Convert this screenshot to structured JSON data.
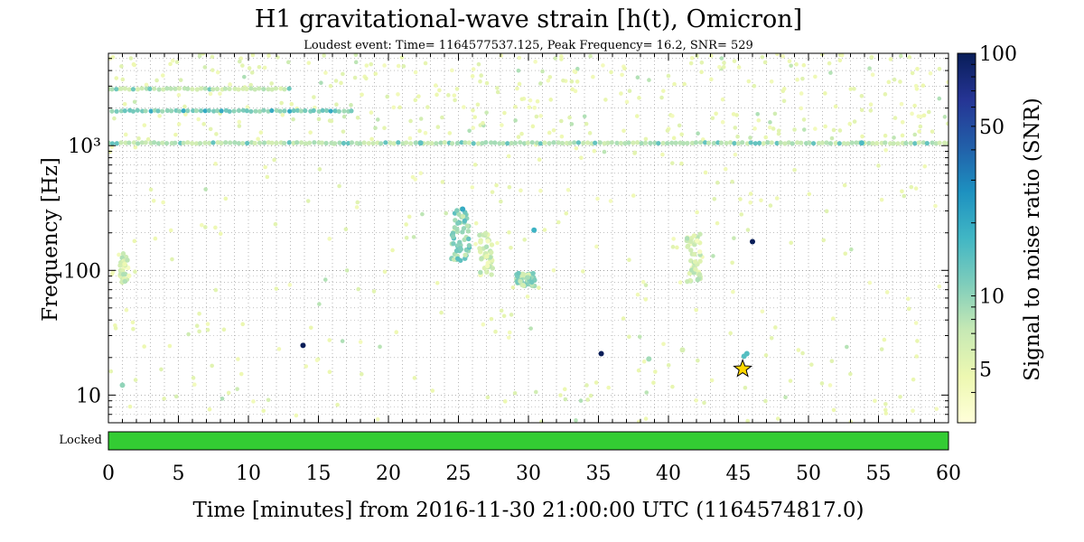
{
  "chart_data": {
    "type": "scatter",
    "title": "H1 gravitational-wave strain [h(t), Omicron]",
    "subtitle": "Loudest event: Time= 1164577537.125, Peak Frequency= 16.2, SNR= 529",
    "xlabel": "Time [minutes] from 2016-11-30 21:00:00 UTC (1164574817.0)",
    "ylabel": "Frequency [Hz]",
    "xlim": [
      0,
      60
    ],
    "ylim": [
      6,
      5500
    ],
    "yscale": "log",
    "grid": true,
    "x_ticks": [
      "0",
      "5",
      "10",
      "15",
      "20",
      "25",
      "30",
      "35",
      "40",
      "45",
      "50",
      "55",
      "60"
    ],
    "y_ticks": [
      {
        "value": 10,
        "label": "10"
      },
      {
        "value": 100,
        "label": "100"
      },
      {
        "value": 1000,
        "label": "10³"
      }
    ],
    "colorbar": {
      "label": "Signal to noise ratio (SNR)",
      "scale": "log",
      "range": [
        3,
        100
      ],
      "ticks": [
        {
          "value": 5,
          "label": "5"
        },
        {
          "value": 10,
          "label": "10"
        },
        {
          "value": 50,
          "label": "50"
        },
        {
          "value": 100,
          "label": "100"
        }
      ],
      "colormap": [
        "#ffffd9",
        "#edf8b1",
        "#c7e9b4",
        "#7fcdbb",
        "#41b6c4",
        "#1d91c0",
        "#225ea8",
        "#253494",
        "#081d58"
      ]
    },
    "loudest_event": {
      "time_min": 45.3,
      "frequency": 16.2,
      "snr": 529,
      "color": "#ffd700"
    },
    "bands": [
      {
        "frequency": 1050,
        "from": 0,
        "to": 60,
        "snr": 7.5
      },
      {
        "frequency": 1900,
        "from": 0,
        "to": 17.5,
        "snr": 11
      },
      {
        "frequency": 2850,
        "from": 0,
        "to": 13.2,
        "snr": 7
      }
    ],
    "clusters": [
      {
        "from": 24.5,
        "to": 25.8,
        "fmin": 120,
        "fmax": 320,
        "snr": 11
      },
      {
        "from": 26.5,
        "to": 27.5,
        "fmin": 90,
        "fmax": 200,
        "snr": 6
      },
      {
        "from": 29.1,
        "to": 30.5,
        "fmin": 75,
        "fmax": 95,
        "snr": 9
      },
      {
        "from": 41.3,
        "to": 42.3,
        "fmin": 80,
        "fmax": 200,
        "snr": 6
      },
      {
        "from": 0.8,
        "to": 1.5,
        "fmin": 80,
        "fmax": 140,
        "snr": 6
      }
    ],
    "notable_points": [
      {
        "time": 13.9,
        "frequency": 25,
        "snr": 100
      },
      {
        "time": 35.2,
        "frequency": 21.5,
        "snr": 100
      },
      {
        "time": 46.0,
        "frequency": 170,
        "snr": 100
      },
      {
        "time": 30.4,
        "frequency": 210,
        "snr": 18
      },
      {
        "time": 25.3,
        "frequency": 310,
        "snr": 20
      },
      {
        "time": 45.4,
        "frequency": 20.5,
        "snr": 15
      },
      {
        "time": 45.6,
        "frequency": 21.5,
        "snr": 15
      },
      {
        "time": 1.0,
        "frequency": 12,
        "snr": 10
      },
      {
        "time": 38.6,
        "frequency": 19.5,
        "snr": 9
      },
      {
        "time": 41.0,
        "frequency": 23,
        "snr": 6
      },
      {
        "time": 22.3,
        "frequency": 1050,
        "snr": 14
      },
      {
        "time": 53.8,
        "frequency": 1050,
        "snr": 16
      }
    ],
    "background_points": 620,
    "state_segment": {
      "label": "Locked",
      "from": 0,
      "to": 60,
      "color": "#33cc33"
    }
  }
}
